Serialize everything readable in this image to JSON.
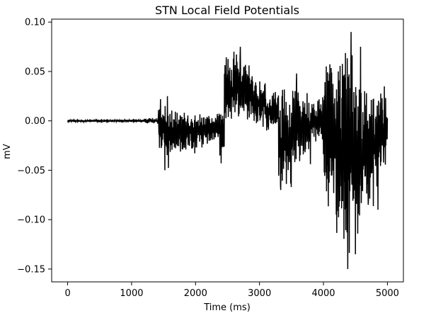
{
  "chart_data": {
    "type": "line",
    "title": "STN Local Field Potentials",
    "xlabel": "Time (ms)",
    "ylabel": "mV",
    "xlim": [
      -250,
      5250
    ],
    "ylim": [
      -0.163,
      0.103
    ],
    "xticks": [
      0,
      1000,
      2000,
      3000,
      4000,
      5000
    ],
    "yticks": [
      -0.15,
      -0.1,
      -0.05,
      0.0,
      0.05,
      0.1
    ],
    "xtick_labels": [
      "0",
      "1000",
      "2000",
      "3000",
      "4000",
      "5000"
    ],
    "ytick_labels": [
      "−0.15",
      "−0.10",
      "−0.05",
      "0.00",
      "0.05",
      "0.10"
    ],
    "grid": false,
    "line_color": "#000000",
    "series": [
      {
        "segments": [
          {
            "start": 0,
            "end": 1200,
            "lo": -0.0012,
            "hi": 0.0012
          },
          {
            "start": 1200,
            "end": 1420,
            "lo": -0.003,
            "hi": 0.003
          },
          {
            "start": 1420,
            "end": 1520,
            "lo": -0.03,
            "hi": 0.02
          },
          {
            "start": 1520,
            "end": 1600,
            "lo": -0.05,
            "hi": 0.025
          },
          {
            "start": 1600,
            "end": 1800,
            "lo": -0.035,
            "hi": 0.012
          },
          {
            "start": 1800,
            "end": 2000,
            "lo": -0.033,
            "hi": 0.01
          },
          {
            "start": 2000,
            "end": 2200,
            "lo": -0.028,
            "hi": 0.01
          },
          {
            "start": 2200,
            "end": 2380,
            "lo": -0.022,
            "hi": 0.008
          },
          {
            "start": 2380,
            "end": 2450,
            "lo": -0.043,
            "hi": 0.012
          },
          {
            "start": 2450,
            "end": 2600,
            "lo": -0.005,
            "hi": 0.065
          },
          {
            "start": 2600,
            "end": 2700,
            "lo": -0.003,
            "hi": 0.075
          },
          {
            "start": 2700,
            "end": 2900,
            "lo": 0.0,
            "hi": 0.06
          },
          {
            "start": 2900,
            "end": 3100,
            "lo": -0.007,
            "hi": 0.045
          },
          {
            "start": 3100,
            "end": 3300,
            "lo": -0.01,
            "hi": 0.03
          },
          {
            "start": 3300,
            "end": 3500,
            "lo": -0.075,
            "hi": 0.035
          },
          {
            "start": 3500,
            "end": 3600,
            "lo": -0.045,
            "hi": 0.04
          },
          {
            "start": 3600,
            "end": 3800,
            "lo": -0.045,
            "hi": 0.03
          },
          {
            "start": 3800,
            "end": 4000,
            "lo": -0.025,
            "hi": 0.025
          },
          {
            "start": 4000,
            "end": 4200,
            "lo": -0.095,
            "hi": 0.07
          },
          {
            "start": 4200,
            "end": 4300,
            "lo": -0.12,
            "hi": 0.075
          },
          {
            "start": 4300,
            "end": 4450,
            "lo": -0.15,
            "hi": 0.09
          },
          {
            "start": 4450,
            "end": 4600,
            "lo": -0.12,
            "hi": 0.05
          },
          {
            "start": 4600,
            "end": 4850,
            "lo": -0.09,
            "hi": 0.042
          },
          {
            "start": 4850,
            "end": 5000,
            "lo": -0.055,
            "hi": 0.035
          }
        ],
        "spikes": [
          [
            1450,
            0.022
          ],
          [
            1520,
            -0.05
          ],
          [
            1560,
            0.025
          ],
          [
            2400,
            -0.043
          ],
          [
            2600,
            0.07
          ],
          [
            2700,
            0.075
          ],
          [
            3330,
            -0.07
          ],
          [
            3350,
            0.025
          ],
          [
            3580,
            0.048
          ],
          [
            4380,
            -0.15
          ],
          [
            4430,
            0.09
          ],
          [
            4200,
            -0.095
          ],
          [
            4500,
            -0.135
          ],
          [
            4580,
            0.075
          ],
          [
            4700,
            -0.085
          ],
          [
            4850,
            -0.09
          ],
          [
            4950,
            0.035
          ]
        ]
      }
    ]
  }
}
